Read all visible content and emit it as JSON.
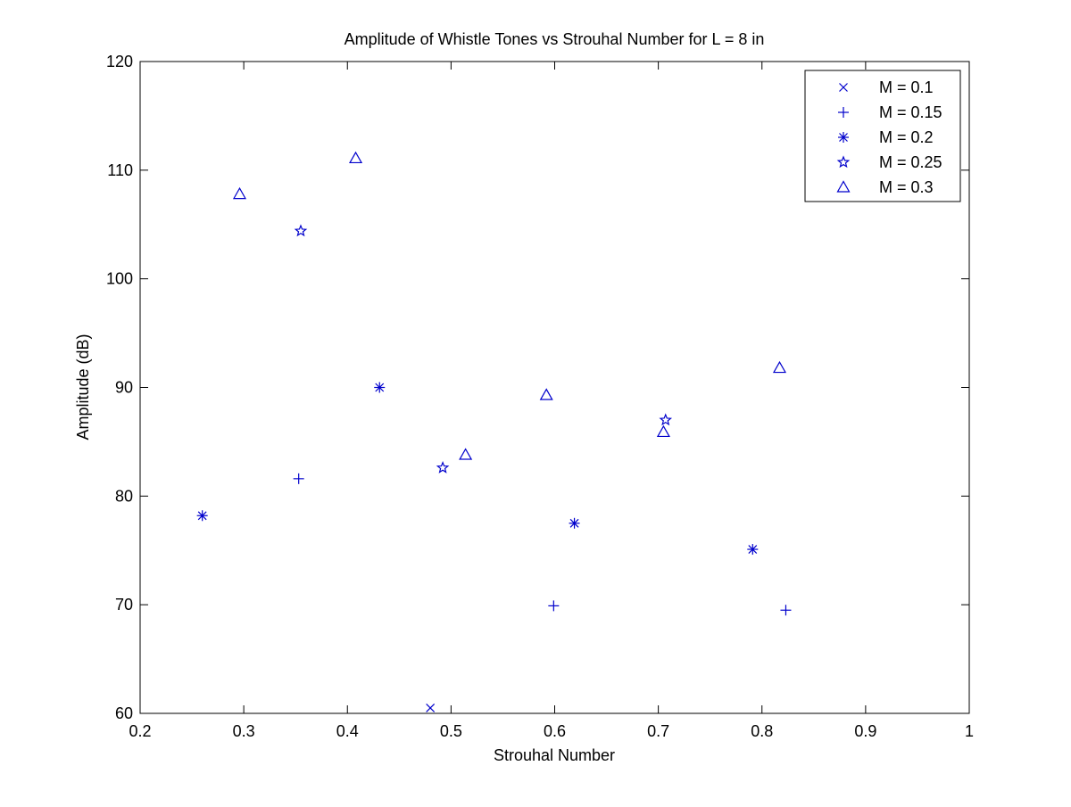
{
  "chart_data": {
    "type": "scatter",
    "title": "Amplitude of Whistle Tones vs Strouhal Number for L = 8 in",
    "xlabel": "Strouhal Number",
    "ylabel": "Amplitude (dB)",
    "xlim": [
      0.2,
      1.0
    ],
    "ylim": [
      60,
      120
    ],
    "xticks": [
      0.2,
      0.3,
      0.4,
      0.5,
      0.6,
      0.7,
      0.8,
      0.9,
      1.0
    ],
    "xtick_labels": [
      "0.2",
      "0.3",
      "0.4",
      "0.5",
      "0.6",
      "0.7",
      "0.8",
      "0.9",
      "1"
    ],
    "yticks": [
      60,
      70,
      80,
      90,
      100,
      110,
      120
    ],
    "ytick_labels": [
      "60",
      "70",
      "80",
      "90",
      "100",
      "110",
      "120"
    ],
    "grid": false,
    "legend_position": "top-right",
    "marker_color": "#0000cc",
    "series": [
      {
        "name": "M = 0.1",
        "marker": "x",
        "points": [
          [
            0.48,
            60.5
          ]
        ]
      },
      {
        "name": "M = 0.15",
        "marker": "plus",
        "points": [
          [
            0.353,
            81.6
          ],
          [
            0.599,
            69.9
          ],
          [
            0.823,
            69.5
          ]
        ]
      },
      {
        "name": "M = 0.2",
        "marker": "asterisk",
        "points": [
          [
            0.26,
            78.2
          ],
          [
            0.431,
            90.0
          ],
          [
            0.619,
            77.5
          ],
          [
            0.791,
            75.1
          ]
        ]
      },
      {
        "name": "M = 0.25",
        "marker": "star",
        "points": [
          [
            0.355,
            104.4
          ],
          [
            0.492,
            82.6
          ],
          [
            0.707,
            87.0
          ]
        ]
      },
      {
        "name": "M = 0.3",
        "marker": "triangle",
        "points": [
          [
            0.296,
            107.8
          ],
          [
            0.408,
            111.1
          ],
          [
            0.514,
            83.8
          ],
          [
            0.592,
            89.3
          ],
          [
            0.705,
            85.9
          ],
          [
            0.817,
            91.8
          ]
        ]
      }
    ]
  }
}
